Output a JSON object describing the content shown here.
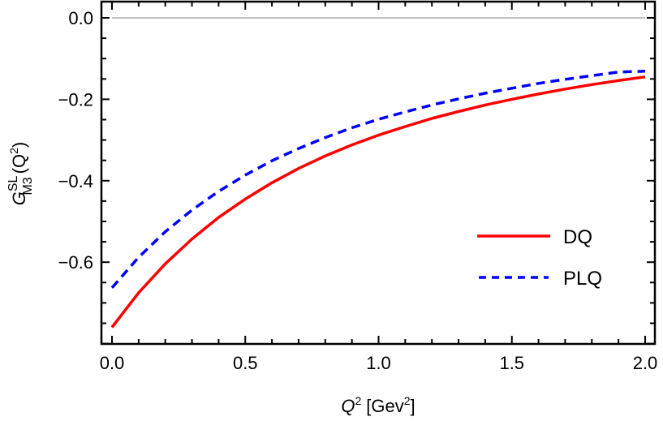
{
  "chart_data": {
    "type": "line",
    "title": "",
    "xlabel": "Q^2 [Gev^2]",
    "ylabel": "G_M3^SL(Q^2)",
    "xlim": [
      -0.04,
      2.04
    ],
    "ylim": [
      -0.8,
      0.04
    ],
    "x_ticks": [
      0.0,
      0.5,
      1.0,
      1.5,
      2.0
    ],
    "x_tick_labels": [
      "0.0",
      "0.5",
      "1.0",
      "1.5",
      "2.0"
    ],
    "y_ticks": [
      0.0,
      -0.2,
      -0.4,
      -0.6
    ],
    "y_tick_labels": [
      "0.0",
      "−0.2",
      "−0.4",
      "−0.6"
    ],
    "grid": false,
    "reference_line": {
      "y": 0.0,
      "color": "#999999"
    },
    "legend_position": "lower right (inside)",
    "x": [
      0.0,
      0.1,
      0.2,
      0.3,
      0.4,
      0.5,
      0.6,
      0.7,
      0.8,
      0.9,
      1.0,
      1.1,
      1.2,
      1.3,
      1.4,
      1.5,
      1.6,
      1.7,
      1.8,
      1.9,
      2.0
    ],
    "series": [
      {
        "name": "DQ",
        "style": "solid",
        "color": "#ff0000",
        "values": [
          -0.76,
          -0.675,
          -0.604,
          -0.543,
          -0.49,
          -0.445,
          -0.405,
          -0.37,
          -0.339,
          -0.312,
          -0.288,
          -0.267,
          -0.247,
          -0.23,
          -0.214,
          -0.2,
          -0.187,
          -0.175,
          -0.164,
          -0.154,
          -0.145
        ]
      },
      {
        "name": "PLQ",
        "style": "dashed",
        "color": "#0000ff",
        "values": [
          -0.663,
          -0.588,
          -0.525,
          -0.472,
          -0.426,
          -0.386,
          -0.351,
          -0.321,
          -0.294,
          -0.27,
          -0.249,
          -0.231,
          -0.214,
          -0.199,
          -0.185,
          -0.173,
          -0.161,
          -0.151,
          -0.142,
          -0.133,
          -0.131
        ]
      }
    ]
  },
  "axes": {
    "xlabel_main": "Q",
    "xlabel_sup": "2",
    "xlabel_unit_open": "[Gev",
    "xlabel_unit_sup": "2",
    "xlabel_unit_close": "]",
    "ylabel_main": "G",
    "ylabel_sup": "SL",
    "ylabel_sub": "M3",
    "ylabel_arg_open": "(Q",
    "ylabel_arg_sup": "2",
    "ylabel_arg_close": ")"
  },
  "legend": {
    "items": [
      {
        "label": "DQ",
        "color": "#ff0000",
        "style": "solid"
      },
      {
        "label": "PLQ",
        "color": "#0000ff",
        "style": "dashed"
      }
    ]
  }
}
